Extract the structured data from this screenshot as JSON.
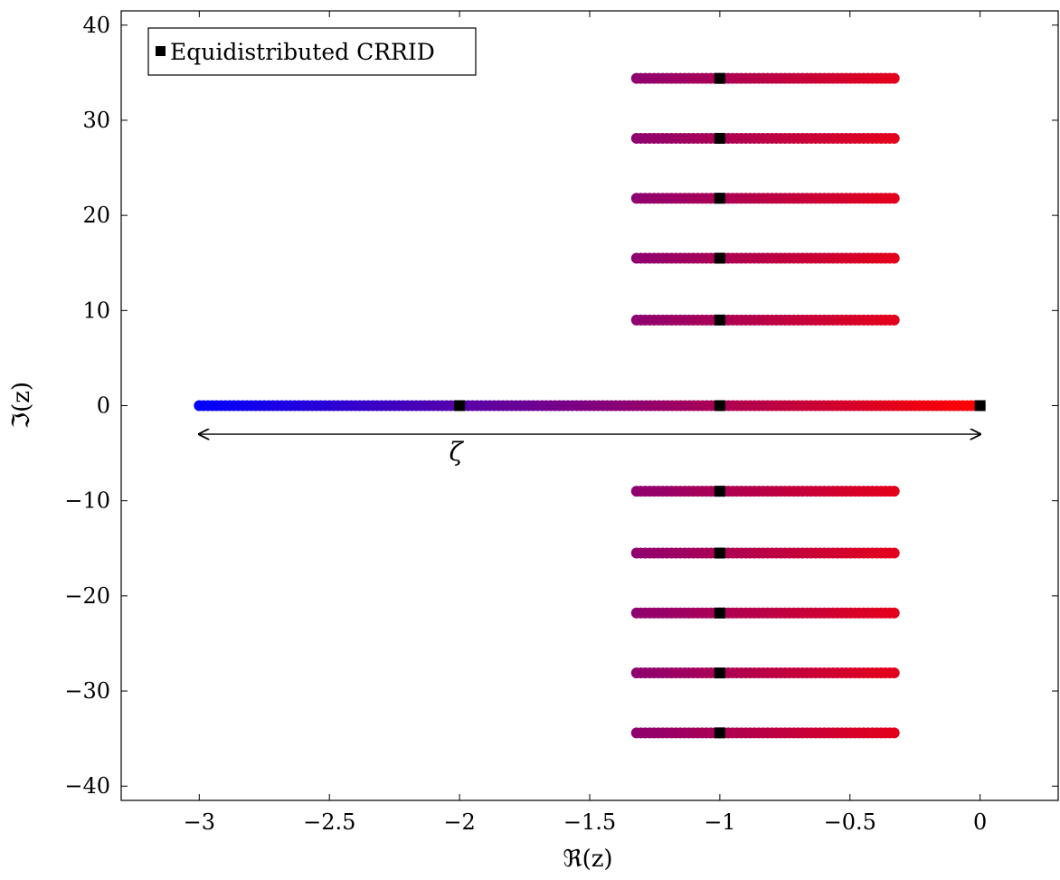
{
  "chart_data": {
    "type": "scatter",
    "xlabel": "ℜ(z)",
    "ylabel": "ℑ(z)",
    "xlim": [
      -3.3,
      0.3
    ],
    "ylim": [
      -41.5,
      41.5
    ],
    "xticks": [
      -3,
      -2.5,
      -2,
      -1.5,
      -1,
      -0.5,
      0
    ],
    "xtick_labels": [
      "−3",
      "−2.5",
      "−2",
      "−1.5",
      "−1",
      "−0.5",
      "0"
    ],
    "yticks": [
      -40,
      -30,
      -20,
      -10,
      0,
      10,
      20,
      30,
      40
    ],
    "ytick_labels": [
      "−40",
      "−30",
      "−20",
      "−10",
      "0",
      "10",
      "20",
      "30",
      "40"
    ],
    "grid": false,
    "legend": {
      "placement": "top-left",
      "entries": [
        {
          "label": "Equidistributed CRRID",
          "marker": "square",
          "color": "#000000"
        }
      ]
    },
    "colormap": {
      "left_color": "#0000ff",
      "right_color": "#ff0000"
    },
    "series": [
      {
        "kind": "point-strip",
        "segments": [
          {
            "x_start": -3.0,
            "x_end": 0.0,
            "y": 0
          },
          {
            "x_start": -1.32,
            "x_end": -0.33,
            "y": 9.0
          },
          {
            "x_start": -1.32,
            "x_end": -0.33,
            "y": 15.5
          },
          {
            "x_start": -1.32,
            "x_end": -0.33,
            "y": 21.8
          },
          {
            "x_start": -1.32,
            "x_end": -0.33,
            "y": 28.1
          },
          {
            "x_start": -1.32,
            "x_end": -0.33,
            "y": 34.4
          },
          {
            "x_start": -1.32,
            "x_end": -0.33,
            "y": -9.0
          },
          {
            "x_start": -1.32,
            "x_end": -0.33,
            "y": -15.5
          },
          {
            "x_start": -1.32,
            "x_end": -0.33,
            "y": -21.8
          },
          {
            "x_start": -1.32,
            "x_end": -0.33,
            "y": -28.1
          },
          {
            "x_start": -1.32,
            "x_end": -0.33,
            "y": -34.4
          }
        ]
      },
      {
        "name": "Equidistributed CRRID",
        "kind": "square-markers",
        "color": "#000000",
        "points": [
          {
            "x": -2,
            "y": 0
          },
          {
            "x": -1,
            "y": 0
          },
          {
            "x": 0,
            "y": 0
          },
          {
            "x": -1,
            "y": 9.0
          },
          {
            "x": -1,
            "y": 15.5
          },
          {
            "x": -1,
            "y": 21.8
          },
          {
            "x": -1,
            "y": 28.1
          },
          {
            "x": -1,
            "y": 34.4
          },
          {
            "x": -1,
            "y": -9.0
          },
          {
            "x": -1,
            "y": -15.5
          },
          {
            "x": -1,
            "y": -21.8
          },
          {
            "x": -1,
            "y": -28.1
          },
          {
            "x": -1,
            "y": -34.4
          }
        ]
      }
    ],
    "annotations": [
      {
        "kind": "double-arrow",
        "x_start": -3.0,
        "x_end": 0.0,
        "y": -3.0,
        "label": "ζ",
        "label_x": -2.0,
        "label_y": -5.0
      }
    ]
  }
}
